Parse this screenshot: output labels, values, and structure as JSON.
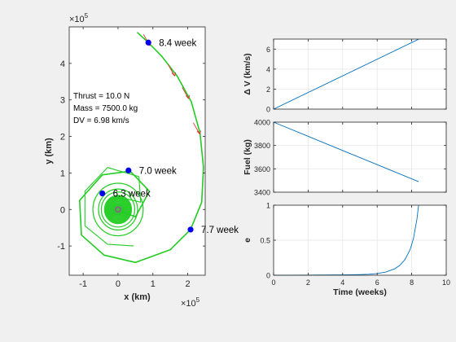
{
  "figure": {
    "background": "#f0f0f0",
    "axes_background": "#ffffff"
  },
  "chart_data": [
    {
      "id": "orbit",
      "type": "line",
      "xlabel": "x (km)",
      "ylabel": "y (km)",
      "x_exponent": "×10",
      "x_exponent_power": "5",
      "y_exponent": "×10",
      "y_exponent_power": "5",
      "xlim": [
        -1.4,
        2.5
      ],
      "ylim": [
        -1.8,
        5.0
      ],
      "xticks": [
        -1,
        0,
        1,
        2
      ],
      "xtick_labels": [
        "-1",
        "0",
        "1",
        "2"
      ],
      "yticks": [
        -1,
        0,
        1,
        2,
        3,
        4
      ],
      "ytick_labels": [
        "-1",
        "0",
        "1",
        "2",
        "3",
        "4"
      ],
      "grid": false,
      "trajectory_color": "#22cc22",
      "marker_color": "#0000ee",
      "thrust_arrow_color": "#e03030",
      "info_text": [
        "Thrust = 10.0 N",
        "Mass = 7500.0 kg",
        "DV = 6.98 km/s"
      ],
      "markers": [
        {
          "x": 0.87,
          "y": 4.57,
          "label": "8.4 week"
        },
        {
          "x": 0.3,
          "y": 1.07,
          "label": "7.0 week"
        },
        {
          "x": -0.45,
          "y": 0.44,
          "label": "6.3 week"
        },
        {
          "x": 2.08,
          "y": -0.55,
          "label": "7.7 week"
        }
      ],
      "thrust_arrows": [
        {
          "x": 0.87,
          "y": 4.57
        },
        {
          "x": 1.58,
          "y": 3.74
        },
        {
          "x": 1.98,
          "y": 3.12
        },
        {
          "x": 2.3,
          "y": 2.15
        }
      ],
      "central_body_color": "#9b4f9b"
    },
    {
      "id": "delta_v",
      "type": "line",
      "ylabel": "Δ V (km/s)",
      "xlim": [
        0,
        10
      ],
      "ylim": [
        0,
        7
      ],
      "xticks": [
        0,
        2,
        4,
        6,
        8,
        10
      ],
      "yticks": [
        0,
        2,
        4,
        6
      ],
      "ytick_labels": [
        "0",
        "2",
        "4",
        "6"
      ],
      "grid": true,
      "line_color": "#0072bd",
      "series": [
        {
          "x": [
            0,
            8.4
          ],
          "y": [
            0,
            6.98
          ]
        }
      ]
    },
    {
      "id": "fuel",
      "type": "line",
      "ylabel": "Fuel (kg)",
      "xlim": [
        0,
        10
      ],
      "ylim": [
        3400,
        4000
      ],
      "xticks": [
        0,
        2,
        4,
        6,
        8,
        10
      ],
      "yticks": [
        3400,
        3600,
        3800,
        4000
      ],
      "ytick_labels": [
        "3400",
        "3600",
        "3800",
        "4000"
      ],
      "grid": true,
      "line_color": "#0072bd",
      "series": [
        {
          "x": [
            0,
            8.4
          ],
          "y": [
            4000,
            3490
          ]
        }
      ]
    },
    {
      "id": "eccentricity",
      "type": "line",
      "ylabel": "e",
      "xlabel": "Time (weeks)",
      "xlim": [
        0,
        10
      ],
      "ylim": [
        0,
        1
      ],
      "xticks": [
        0,
        2,
        4,
        6,
        8,
        10
      ],
      "xtick_labels": [
        "0",
        "2",
        "4",
        "6",
        "8",
        "10"
      ],
      "yticks": [
        0,
        0.5,
        1
      ],
      "ytick_labels": [
        "0",
        "0.5",
        "1"
      ],
      "grid": true,
      "line_color": "#0072bd",
      "series": [
        {
          "x": [
            0,
            1,
            2,
            3,
            4,
            5,
            5.5,
            6,
            6.5,
            7,
            7.3,
            7.6,
            7.9,
            8.1,
            8.3,
            8.4
          ],
          "y": [
            0,
            0.001,
            0.002,
            0.003,
            0.005,
            0.009,
            0.014,
            0.025,
            0.045,
            0.09,
            0.14,
            0.22,
            0.36,
            0.52,
            0.8,
            1.0
          ]
        }
      ]
    }
  ]
}
